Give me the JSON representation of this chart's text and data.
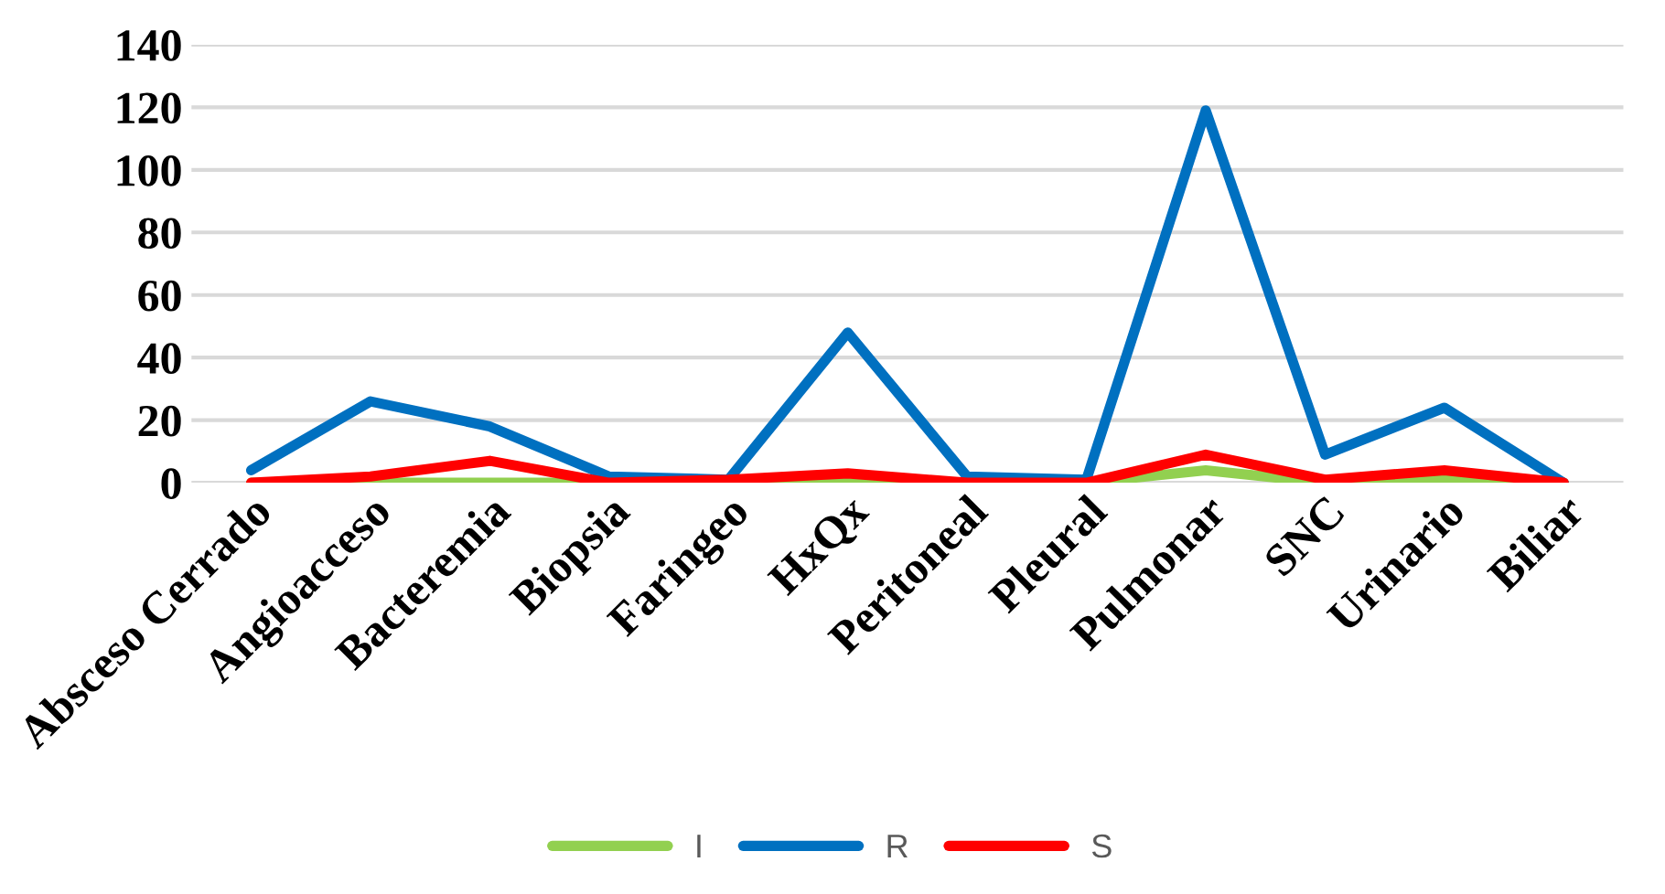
{
  "chart_data": {
    "type": "line",
    "categories": [
      "Absceso Cerrado",
      "Angioacceso",
      "Bacteremia",
      "Biopsia",
      "Faringeo",
      "HxQx",
      "Peritoneal",
      "Pleural",
      "Pulmonar",
      "SNC",
      "Urinario",
      "Biliar"
    ],
    "series": [
      {
        "name": "I",
        "color": "#92d050",
        "values": [
          0,
          0,
          0,
          0,
          0,
          0,
          0,
          0,
          4,
          0,
          1,
          0
        ]
      },
      {
        "name": "R",
        "color": "#0070c0",
        "values": [
          4,
          26,
          18,
          2,
          1,
          48,
          2,
          1,
          119,
          9,
          24,
          0
        ]
      },
      {
        "name": "S",
        "color": "#ff0000",
        "values": [
          0,
          2,
          7,
          0,
          1,
          3,
          0,
          0,
          9,
          1,
          4,
          0
        ]
      }
    ],
    "ylim": [
      0,
      140
    ],
    "yticks": [
      0,
      20,
      40,
      60,
      80,
      100,
      120,
      140
    ],
    "grid": "y",
    "legend": "bottom",
    "marker": "none",
    "line_style": "solid"
  }
}
